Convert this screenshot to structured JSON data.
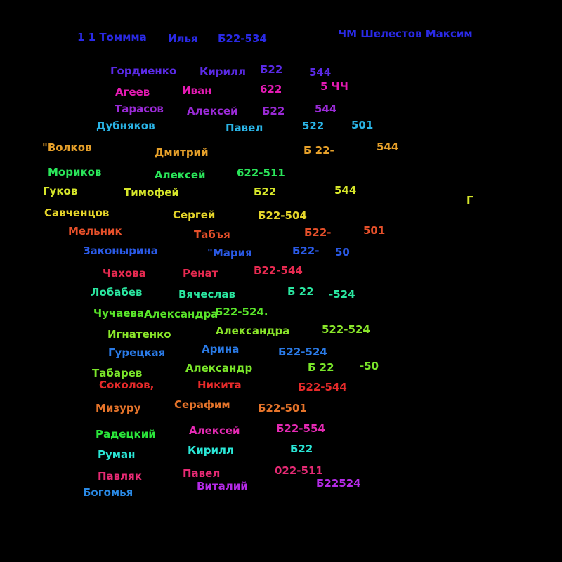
{
  "words": [
    {
      "text": "1 1 Томмма",
      "color": "#2a2ae6"
    },
    {
      "text": "Илья",
      "color": "#2a2ae6"
    },
    {
      "text": "Б22-534",
      "color": "#2a2ae6"
    },
    {
      "text": "ЧМ Шелестов Максим",
      "color": "#2a2ae6"
    },
    {
      "text": "Гордиенко",
      "color": "#5a2ae6"
    },
    {
      "text": "Кирилл",
      "color": "#5a2ae6"
    },
    {
      "text": "Б22",
      "color": "#5a2ae6"
    },
    {
      "text": "544",
      "color": "#5a2ae6"
    },
    {
      "text": "Агеев",
      "color": "#e61ab4"
    },
    {
      "text": "Иван",
      "color": "#e61ab4"
    },
    {
      "text": "622",
      "color": "#e61ab4"
    },
    {
      "text": "5 ЧЧ",
      "color": "#e61ab4"
    },
    {
      "text": "Тарасов",
      "color": "#9a2ad6"
    },
    {
      "text": "Алексей",
      "color": "#9a2ad6"
    },
    {
      "text": "Б22",
      "color": "#9a2ad6"
    },
    {
      "text": "544",
      "color": "#9a2ad6"
    },
    {
      "text": "Дубняков",
      "color": "#2ab4e6"
    },
    {
      "text": "Павел",
      "color": "#2ab4e6"
    },
    {
      "text": "522",
      "color": "#2ab4e6"
    },
    {
      "text": "501",
      "color": "#2ab4e6"
    },
    {
      "text": "\"Волков",
      "color": "#e6a02a"
    },
    {
      "text": "Дмитрий",
      "color": "#e6a02a"
    },
    {
      "text": "Б 22-",
      "color": "#e6a02a"
    },
    {
      "text": "544",
      "color": "#e6a02a"
    },
    {
      "text": "Мориков",
      "color": "#2ae65a"
    },
    {
      "text": "Алексей",
      "color": "#2ae65a"
    },
    {
      "text": "622-511",
      "color": "#2ae65a"
    },
    {
      "text": "Гуков",
      "color": "#d6e62a"
    },
    {
      "text": "Тимофей",
      "color": "#d6e62a"
    },
    {
      "text": "Б22",
      "color": "#d6e62a"
    },
    {
      "text": "544",
      "color": "#d6e62a"
    },
    {
      "text": "Г",
      "color": "#d6e62a"
    },
    {
      "text": "Савченцов",
      "color": "#e6d62a"
    },
    {
      "text": "Сергей",
      "color": "#e6d62a"
    },
    {
      "text": "Б22-504",
      "color": "#e6d62a"
    },
    {
      "text": "Мельник",
      "color": "#e6502a"
    },
    {
      "text": "Табъя",
      "color": "#e6502a"
    },
    {
      "text": "Б22-",
      "color": "#e6502a"
    },
    {
      "text": "501",
      "color": "#e6502a"
    },
    {
      "text": "Законырина",
      "color": "#2a5ae6"
    },
    {
      "text": "\"Мария",
      "color": "#2a5ae6"
    },
    {
      "text": "Б22-",
      "color": "#2a5ae6"
    },
    {
      "text": "50",
      "color": "#2a5ae6"
    },
    {
      "text": "Чахова",
      "color": "#e62a50"
    },
    {
      "text": "Ренат",
      "color": "#e62a50"
    },
    {
      "text": "В22-544",
      "color": "#e62a50"
    },
    {
      "text": "Лобабев",
      "color": "#2ae6a0"
    },
    {
      "text": "Вячеслав",
      "color": "#2ae6a0"
    },
    {
      "text": "Б 22",
      "color": "#2ae6a0"
    },
    {
      "text": "-524",
      "color": "#2ae6a0"
    },
    {
      "text": "Чучаева",
      "color": "#5ae62a"
    },
    {
      "text": "Александра",
      "color": "#5ae62a"
    },
    {
      "text": "Б22-524.",
      "color": "#5ae62a"
    },
    {
      "text": "Игнатенко",
      "color": "#8ae62a"
    },
    {
      "text": "Александра",
      "color": "#8ae62a"
    },
    {
      "text": "522-524",
      "color": "#8ae62a"
    },
    {
      "text": "Гурецкая",
      "color": "#2a7ae6"
    },
    {
      "text": "Арина",
      "color": "#2a7ae6"
    },
    {
      "text": "Б22-524",
      "color": "#2a7ae6"
    },
    {
      "text": "Табарев",
      "color": "#7ae62a"
    },
    {
      "text": "Александр",
      "color": "#7ae62a"
    },
    {
      "text": "Б 22",
      "color": "#7ae62a"
    },
    {
      "text": "-50",
      "color": "#7ae62a"
    },
    {
      "text": "Соколов,",
      "color": "#e62a2a"
    },
    {
      "text": "Никита",
      "color": "#e62a2a"
    },
    {
      "text": "Б22-544",
      "color": "#e62a2a"
    },
    {
      "text": "Мизуру",
      "color": "#e6742a"
    },
    {
      "text": "Серафим",
      "color": "#e6742a"
    },
    {
      "text": "Б22-501",
      "color": "#e6742a"
    },
    {
      "text": "Радецкий",
      "color": "#2ae63a"
    },
    {
      "text": "Алексей",
      "color": "#e62ab4"
    },
    {
      "text": "Б22-554",
      "color": "#e62ab4"
    },
    {
      "text": "Руман",
      "color": "#2ae6d6"
    },
    {
      "text": "Кирилл",
      "color": "#2ae6d6"
    },
    {
      "text": "Б22",
      "color": "#2ae6d6"
    },
    {
      "text": "Павляк",
      "color": "#e62a74"
    },
    {
      "text": "Павел",
      "color": "#e62a74"
    },
    {
      "text": "022-511",
      "color": "#e62a74"
    },
    {
      "text": "Богомья",
      "color": "#2a8ae6"
    },
    {
      "text": "Виталий",
      "color": "#b42ae6"
    },
    {
      "text": "Б22524",
      "color": "#b42ae6"
    }
  ]
}
